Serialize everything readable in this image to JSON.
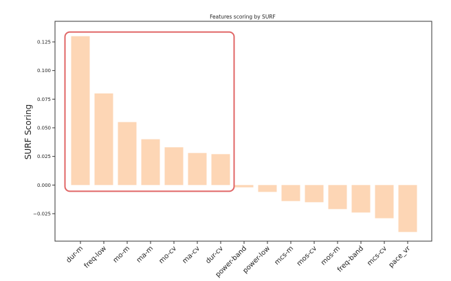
{
  "chart_data": {
    "type": "bar",
    "title": "Features scoring by SURF",
    "xlabel": "",
    "ylabel": "SURF Scoring",
    "categories": [
      "dur-m",
      "freq-low",
      "mo-m",
      "ma-m",
      "mo-cv",
      "ma-cv",
      "dur-cv",
      "power-band",
      "power-low",
      "mcs-m",
      "mos-cv",
      "mos-m",
      "freq-band",
      "mcs-cv",
      "pace_vr"
    ],
    "values": [
      0.13,
      0.08,
      0.055,
      0.04,
      0.033,
      0.028,
      0.027,
      -0.002,
      -0.006,
      -0.014,
      -0.015,
      -0.021,
      -0.024,
      -0.029,
      -0.041
    ],
    "yticks": [
      0.125,
      0.1,
      0.075,
      0.05,
      0.025,
      0.0,
      -0.025
    ],
    "ytick_labels": [
      "0.125",
      "0.100",
      "0.075",
      "0.050",
      "0.025",
      "0.000",
      "−0.025"
    ],
    "ylim": [
      -0.049,
      0.143
    ],
    "grid": false,
    "bar_color": "#fdd6b5",
    "highlight": {
      "from_index": 0,
      "to_index": 6,
      "color": "#e06666"
    }
  }
}
